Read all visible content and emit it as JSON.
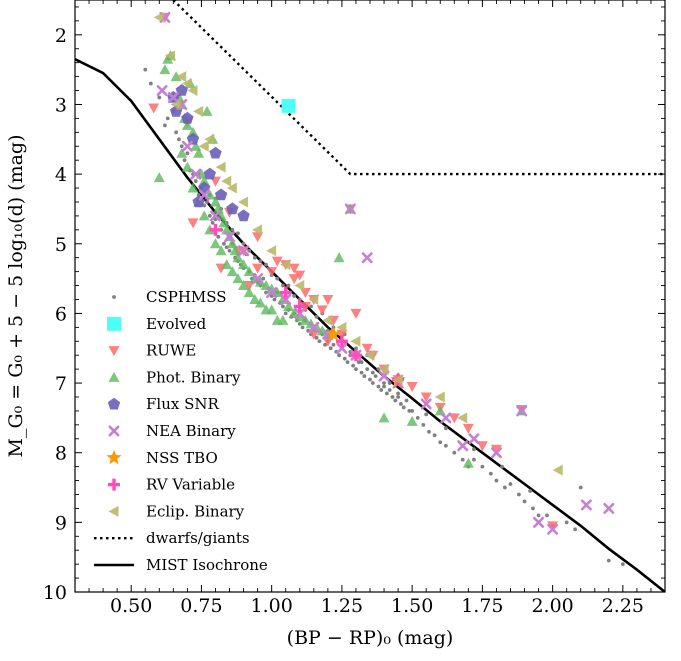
{
  "chart_data": {
    "type": "scatter",
    "title": "",
    "xlabel": "(BP − RP)₀ (mag)",
    "ylabel": "M_G₀ = G₀ + 5 − 5 log₁₀(d) (mag)",
    "xlim": [
      0.3,
      2.4
    ],
    "ylim": [
      10.0,
      1.5
    ],
    "y_inverted": true,
    "xticks": [
      "0.50",
      "0.75",
      "1.00",
      "1.25",
      "1.50",
      "1.75",
      "2.00",
      "2.25"
    ],
    "yticks": [
      "2",
      "3",
      "4",
      "5",
      "6",
      "7",
      "8",
      "9",
      "10"
    ],
    "grid": false,
    "legend_position": "lower-left",
    "legend": [
      {
        "label": "CSPHMSS",
        "marker": "dot",
        "color": "#808080"
      },
      {
        "label": "Evolved",
        "marker": "square",
        "color": "#4dfff5"
      },
      {
        "label": "RUWE",
        "marker": "triangle-down",
        "color": "#ff6a6a"
      },
      {
        "label": "Phot. Binary",
        "marker": "triangle-up",
        "color": "#5cb85c"
      },
      {
        "label": "Flux SNR",
        "marker": "pentagon",
        "color": "#6a5fb8"
      },
      {
        "label": "NEA Binary",
        "marker": "x",
        "color": "#c77ed6"
      },
      {
        "label": "NSS TBO",
        "marker": "star",
        "color": "#ff9900"
      },
      {
        "label": "RV Variable",
        "marker": "plus",
        "color": "#ff4db8"
      },
      {
        "label": "Eclip. Binary",
        "marker": "triangle-left",
        "color": "#b8b86a"
      },
      {
        "label": "dwarfs/giants",
        "marker": "dotted-line",
        "color": "#000000"
      },
      {
        "label": "MIST Isochrone",
        "marker": "solid-line",
        "color": "#000000"
      }
    ],
    "lines": {
      "mist_isochrone": {
        "x": [
          0.3,
          0.4,
          0.5,
          0.6,
          0.7,
          0.8,
          0.9,
          1.0,
          1.1,
          1.2,
          1.3,
          1.4,
          1.5,
          1.6,
          1.7,
          1.8,
          1.9,
          2.0,
          2.1,
          2.2,
          2.3,
          2.4
        ],
        "y": [
          2.35,
          2.55,
          2.95,
          3.5,
          4.05,
          4.55,
          5.0,
          5.4,
          5.8,
          6.2,
          6.55,
          6.9,
          7.22,
          7.55,
          7.85,
          8.15,
          8.45,
          8.75,
          9.05,
          9.38,
          9.68,
          10.0
        ]
      },
      "dwarfs_giants": {
        "x": [
          0.65,
          1.28,
          2.4
        ],
        "y": [
          1.5,
          4.0,
          4.0
        ]
      }
    },
    "series": [
      {
        "name": "CSPHMSS",
        "x": [
          0.55,
          0.57,
          0.6,
          0.62,
          0.63,
          0.65,
          0.66,
          0.67,
          0.68,
          0.69,
          0.7,
          0.71,
          0.72,
          0.73,
          0.74,
          0.75,
          0.76,
          0.77,
          0.78,
          0.79,
          0.8,
          0.81,
          0.82,
          0.83,
          0.84,
          0.85,
          0.86,
          0.87,
          0.88,
          0.89,
          0.9,
          0.91,
          0.92,
          0.93,
          0.94,
          0.95,
          0.96,
          0.97,
          0.98,
          0.99,
          1.0,
          1.01,
          1.02,
          1.03,
          1.04,
          1.05,
          1.06,
          1.07,
          1.08,
          1.09,
          1.1,
          1.11,
          1.12,
          1.13,
          1.14,
          1.15,
          1.16,
          1.17,
          1.18,
          1.19,
          1.2,
          1.21,
          1.22,
          1.23,
          1.24,
          1.25,
          1.26,
          1.27,
          1.28,
          1.29,
          1.3,
          1.31,
          1.32,
          1.33,
          1.34,
          1.35,
          1.36,
          1.37,
          1.38,
          1.39,
          1.4,
          1.41,
          1.42,
          1.43,
          1.44,
          1.45,
          1.46,
          1.47,
          1.48,
          1.49,
          1.5,
          1.52,
          1.54,
          1.56,
          1.58,
          1.6,
          1.62,
          1.65,
          1.68,
          1.7,
          1.72,
          1.75,
          1.78,
          1.8,
          1.83,
          1.85,
          1.88,
          1.9,
          1.93,
          1.95,
          1.98,
          2.0,
          2.05,
          2.08,
          2.1,
          2.2,
          2.25,
          0.74,
          0.78,
          0.82,
          0.86,
          0.9,
          0.94,
          0.98,
          1.02,
          1.06,
          1.1,
          1.14,
          1.18,
          1.22,
          1.26,
          1.3,
          1.34,
          1.38,
          1.42,
          0.7,
          0.76,
          0.8,
          0.84,
          0.88,
          0.92,
          0.96,
          1.0,
          1.04,
          1.08,
          1.12,
          1.16,
          1.2,
          1.24,
          1.28,
          1.32,
          1.36,
          1.4,
          1.45,
          1.55,
          1.62,
          1.72,
          1.82,
          1.92
        ],
        "y": [
          2.5,
          2.7,
          2.9,
          3.3,
          3.2,
          3.1,
          3.4,
          3.5,
          3.6,
          3.8,
          3.7,
          3.95,
          4.0,
          4.1,
          4.3,
          4.2,
          4.45,
          4.4,
          4.6,
          4.7,
          4.65,
          4.9,
          4.8,
          5.0,
          5.05,
          5.1,
          5.0,
          5.2,
          5.25,
          5.3,
          5.35,
          5.15,
          5.4,
          5.5,
          5.45,
          5.55,
          5.6,
          5.5,
          5.7,
          5.65,
          5.75,
          5.8,
          5.7,
          5.85,
          5.9,
          6.0,
          5.95,
          6.05,
          6.0,
          6.1,
          6.15,
          6.2,
          6.1,
          6.25,
          6.3,
          6.2,
          6.35,
          6.4,
          6.3,
          6.45,
          6.4,
          6.5,
          6.45,
          6.55,
          6.6,
          6.5,
          6.65,
          6.7,
          6.6,
          6.75,
          6.8,
          6.7,
          6.85,
          6.9,
          6.8,
          6.95,
          7.0,
          6.9,
          7.05,
          7.1,
          7.0,
          7.15,
          7.1,
          7.2,
          7.25,
          7.15,
          7.3,
          7.35,
          7.25,
          7.4,
          7.4,
          7.5,
          7.6,
          7.7,
          7.75,
          7.85,
          7.9,
          8.0,
          8.1,
          8.2,
          8.1,
          8.2,
          8.3,
          8.4,
          8.5,
          8.45,
          8.6,
          8.7,
          8.8,
          8.9,
          8.9,
          9.05,
          9.0,
          9.1,
          8.5,
          9.55,
          9.6,
          4.0,
          4.3,
          4.5,
          4.8,
          5.0,
          5.2,
          5.3,
          5.5,
          5.6,
          5.8,
          5.9,
          6.0,
          6.2,
          6.3,
          6.5,
          6.6,
          6.8,
          7.0,
          3.7,
          4.15,
          4.35,
          4.7,
          4.85,
          5.1,
          5.25,
          5.45,
          5.6,
          5.75,
          5.95,
          6.05,
          6.25,
          6.4,
          6.55,
          6.7,
          6.85,
          7.05,
          7.2,
          7.45,
          7.65,
          7.95,
          8.2,
          8.55
        ]
      },
      {
        "name": "Evolved",
        "x": [
          1.06
        ],
        "y": [
          3.02
        ]
      },
      {
        "name": "RUWE",
        "x": [
          0.58,
          0.62,
          0.7,
          0.72,
          0.8,
          0.85,
          0.9,
          0.95,
          1.0,
          1.05,
          1.08,
          1.1,
          1.12,
          1.15,
          1.18,
          1.2,
          1.22,
          1.25,
          1.28,
          1.3,
          1.34,
          1.36,
          1.4,
          1.45,
          1.5,
          1.55,
          1.6,
          1.65,
          1.7,
          1.75,
          1.8,
          1.89,
          2.0,
          0.95,
          1.02,
          1.08,
          1.12,
          0.88,
          0.92,
          1.15,
          1.2,
          0.82
        ],
        "y": [
          3.05,
          1.75,
          3.25,
          4.7,
          4.1,
          4.55,
          5.1,
          5.35,
          5.4,
          5.3,
          5.35,
          5.45,
          5.7,
          5.8,
          5.95,
          5.8,
          6.1,
          6.3,
          4.5,
          6.0,
          6.5,
          6.6,
          6.8,
          6.95,
          7.05,
          7.2,
          7.35,
          7.5,
          7.65,
          7.9,
          7.95,
          7.38,
          9.05,
          4.9,
          5.25,
          5.5,
          5.9,
          5.1,
          5.6,
          6.3,
          6.4,
          5.35
        ]
      },
      {
        "name": "Phot. Binary",
        "x": [
          0.6,
          0.62,
          0.64,
          0.66,
          0.67,
          0.68,
          0.69,
          0.7,
          0.71,
          0.72,
          0.73,
          0.74,
          0.75,
          0.76,
          0.77,
          0.78,
          0.79,
          0.8,
          0.81,
          0.82,
          0.83,
          0.84,
          0.85,
          0.86,
          0.87,
          0.88,
          0.9,
          0.92,
          0.94,
          0.96,
          0.98,
          1.0,
          1.02,
          1.04,
          1.06,
          1.08,
          1.1,
          1.12,
          1.14,
          1.16,
          1.18,
          1.2,
          1.24,
          1.28,
          1.4,
          1.5,
          1.6,
          1.7,
          1.89,
          0.65,
          0.68,
          0.72,
          0.76,
          0.8,
          0.84,
          0.88,
          0.92,
          0.96,
          1.0,
          1.04,
          0.7,
          0.74,
          0.78,
          0.82,
          0.86,
          0.9,
          0.94,
          0.98,
          1.02,
          0.63
        ],
        "y": [
          4.05,
          2.5,
          2.3,
          2.6,
          2.9,
          3.0,
          3.2,
          3.3,
          2.7,
          3.4,
          3.6,
          3.7,
          4.0,
          4.1,
          3.1,
          4.3,
          3.5,
          4.4,
          4.5,
          4.6,
          4.7,
          4.8,
          4.9,
          5.0,
          5.1,
          5.2,
          5.3,
          5.4,
          5.5,
          5.55,
          5.6,
          5.65,
          5.7,
          5.8,
          5.9,
          6.0,
          6.05,
          6.1,
          6.15,
          6.2,
          6.25,
          6.3,
          5.2,
          4.5,
          7.5,
          7.55,
          7.4,
          8.15,
          7.4,
          2.9,
          3.7,
          4.2,
          4.6,
          5.0,
          5.3,
          5.5,
          5.7,
          5.85,
          5.95,
          6.1,
          3.9,
          4.4,
          4.8,
          5.1,
          5.4,
          5.6,
          5.8,
          5.95,
          6.1,
          2.35
        ]
      },
      {
        "name": "Flux SNR",
        "x": [
          0.65,
          0.7,
          0.72,
          0.74,
          0.78,
          0.82,
          0.86,
          0.9,
          0.66,
          0.68,
          0.76,
          0.8
        ],
        "y": [
          2.9,
          3.2,
          3.5,
          4.4,
          4.0,
          4.3,
          4.5,
          4.6,
          3.1,
          2.8,
          4.2,
          3.7
        ]
      },
      {
        "name": "NEA Binary",
        "x": [
          0.61,
          0.65,
          0.68,
          0.7,
          0.73,
          0.76,
          0.8,
          0.85,
          0.9,
          0.95,
          1.0,
          1.05,
          1.1,
          1.15,
          1.2,
          1.25,
          1.3,
          1.34,
          1.4,
          1.45,
          1.55,
          1.62,
          1.68,
          1.72,
          1.8,
          1.89,
          1.95,
          2.0,
          2.12,
          2.2,
          0.62,
          1.28
        ],
        "y": [
          2.8,
          2.9,
          3.0,
          3.6,
          4.0,
          4.3,
          4.6,
          4.9,
          5.1,
          5.5,
          5.7,
          5.8,
          6.0,
          6.2,
          6.3,
          6.5,
          6.6,
          5.2,
          6.9,
          7.0,
          7.3,
          7.5,
          7.9,
          7.8,
          8.0,
          7.4,
          9.0,
          9.1,
          8.75,
          8.8,
          1.75,
          4.5
        ]
      },
      {
        "name": "NSS TBO",
        "x": [
          1.22,
          1.45
        ],
        "y": [
          6.3,
          6.95
        ]
      },
      {
        "name": "RV Variable",
        "x": [
          0.8,
          1.05,
          1.1,
          1.25,
          1.3,
          1.45
        ],
        "y": [
          4.8,
          5.7,
          5.9,
          6.4,
          6.6,
          6.95
        ]
      },
      {
        "name": "Eclip. Binary",
        "x": [
          0.6,
          0.64,
          0.68,
          0.7,
          0.74,
          0.78,
          0.82,
          0.86,
          0.9,
          0.95,
          1.0,
          1.05,
          1.1,
          1.15,
          1.2,
          1.25,
          1.3,
          1.35,
          1.4,
          1.45,
          1.6,
          1.68,
          2.02,
          0.66,
          0.72,
          0.76,
          0.84
        ],
        "y": [
          1.75,
          2.3,
          2.6,
          2.7,
          3.1,
          3.5,
          3.9,
          4.2,
          4.4,
          4.8,
          5.1,
          5.3,
          5.6,
          5.8,
          6.1,
          6.2,
          6.4,
          6.6,
          6.8,
          6.95,
          7.2,
          7.5,
          8.25,
          3.0,
          2.8,
          3.6,
          4.1
        ]
      }
    ]
  }
}
